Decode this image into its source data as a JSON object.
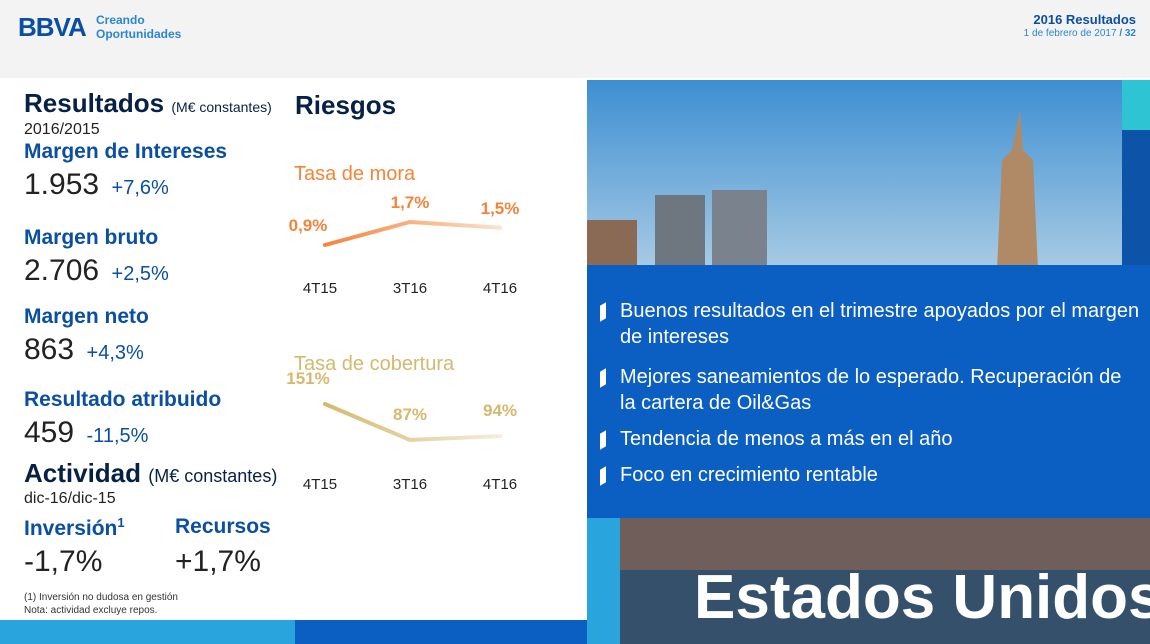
{
  "header": {
    "logo": "BBVA",
    "tagline": [
      "Creando",
      "Oportunidades"
    ],
    "title": "2016 Resultados",
    "date": "1 de febrero de 2017",
    "page": "/ 32"
  },
  "results": {
    "title": "Resultados",
    "unit": "(M€ constantes)",
    "period": "2016/2015",
    "items": [
      {
        "label": "Margen de Intereses",
        "value": "1.953",
        "change": "+7,6%"
      },
      {
        "label": "Margen bruto",
        "value": "2.706",
        "change": "+2,5%"
      },
      {
        "label": "Margen neto",
        "value": "863",
        "change": "+4,3%"
      },
      {
        "label": "Resultado atribuido",
        "value": "459",
        "change": "-11,5%"
      }
    ]
  },
  "activity": {
    "title": "Actividad",
    "unit": "(M€ constantes)",
    "period": "dic-16/dic-15",
    "items": [
      {
        "label": "Inversión",
        "sup": "1",
        "value": "-1,7%"
      },
      {
        "label": "Recursos",
        "value": "+1,7%"
      }
    ],
    "footnotes": [
      "(1) Inversión no dudosa en gestión",
      "Nota: actividad excluye repos."
    ]
  },
  "risks": {
    "title": "Riesgos",
    "charts": [
      {
        "type": "line",
        "title": "Tasa de mora",
        "categories": [
          "4T15",
          "3T16",
          "4T16"
        ],
        "values": [
          0.9,
          1.7,
          1.5
        ],
        "value_labels": [
          "0,9%",
          "1,7%",
          "1,5%"
        ],
        "color": "#f5843a"
      },
      {
        "type": "line",
        "title": "Tasa de cobertura",
        "categories": [
          "4T15",
          "3T16",
          "4T16"
        ],
        "values": [
          151,
          87,
          94
        ],
        "value_labels": [
          "151%",
          "87%",
          "94%"
        ],
        "color": "#d6b86e"
      }
    ]
  },
  "bullets": [
    "Buenos resultados en el trimestre apoyados por el margen de intereses",
    "Mejores saneamientos de lo esperado. Recuperación de la cartera de Oil&Gas",
    "Tendencia de menos a más en el año",
    "Foco en crecimiento rentable"
  ],
  "banner": "Estados Unidos"
}
